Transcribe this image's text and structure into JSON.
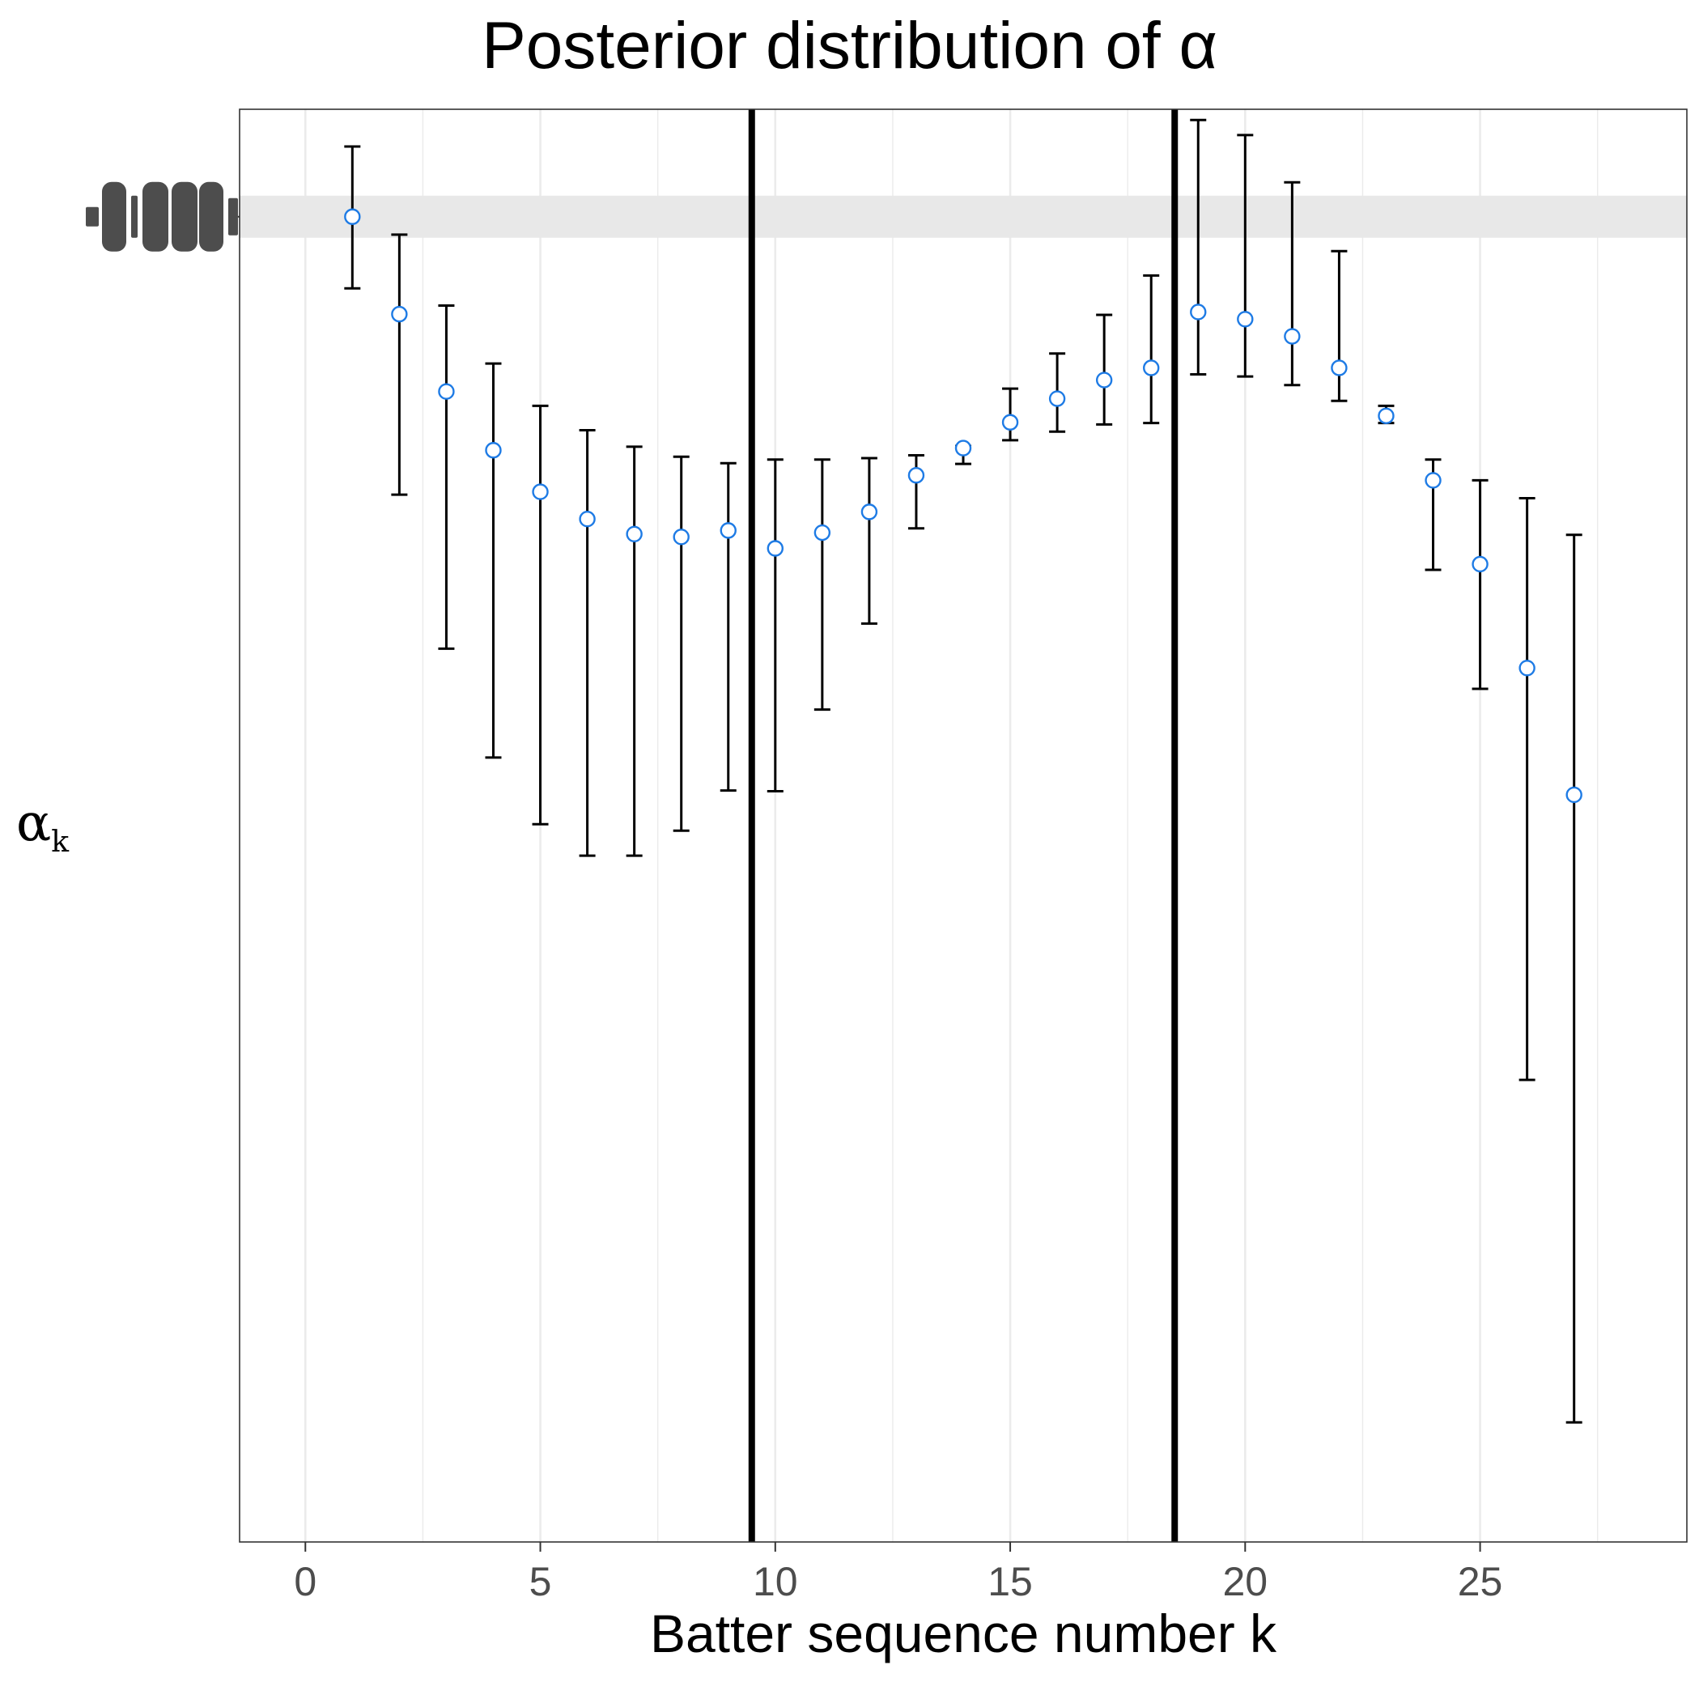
{
  "chart_data": {
    "type": "scatter",
    "title": "Posterior distribution of α",
    "xlabel": "Batter sequence number k",
    "ylabel": "α",
    "ylabel_subscript": "k",
    "xlim": [
      -1.4,
      29.4
    ],
    "x_ticks": [
      0,
      5,
      10,
      15,
      20,
      25
    ],
    "x_tick_labels": [
      "0",
      "5",
      "10",
      "15",
      "20",
      "25"
    ],
    "ylim": [
      -1.05,
      0.95
    ],
    "y_tick_value": 0.8,
    "vertical_lines_x": [
      9.5,
      18.5
    ],
    "grid": "vertical only",
    "series": [
      {
        "x": [
          1,
          2,
          3,
          4,
          5,
          6,
          7,
          8,
          9,
          10,
          11,
          12,
          13,
          14,
          15,
          16,
          17,
          18,
          19,
          20,
          21,
          22,
          23,
          24,
          25,
          26,
          27
        ],
        "y": [
          0.8,
          0.664,
          0.556,
          0.474,
          0.416,
          0.378,
          0.357,
          0.353,
          0.362,
          0.337,
          0.359,
          0.388,
          0.439,
          0.477,
          0.513,
          0.546,
          0.572,
          0.589,
          0.667,
          0.657,
          0.633,
          0.589,
          0.522,
          0.432,
          0.315,
          0.17,
          -0.007
        ],
        "lower": [
          0.7,
          0.412,
          0.197,
          0.045,
          -0.048,
          -0.092,
          -0.092,
          -0.057,
          -0.001,
          -0.002,
          0.112,
          0.232,
          0.365,
          0.455,
          0.488,
          0.5,
          0.51,
          0.512,
          0.58,
          0.577,
          0.565,
          0.543,
          0.512,
          0.307,
          0.141,
          -0.405,
          -0.883
        ],
        "upper": [
          0.898,
          0.775,
          0.676,
          0.595,
          0.536,
          0.502,
          0.479,
          0.465,
          0.456,
          0.461,
          0.461,
          0.463,
          0.467,
          0.48,
          0.56,
          0.609,
          0.663,
          0.718,
          0.935,
          0.914,
          0.848,
          0.752,
          0.536,
          0.461,
          0.432,
          0.407,
          0.356
        ]
      }
    ],
    "colors": {
      "point_stroke": "#1e7be5",
      "point_fill": "#ffffff",
      "errorbar": "#000000",
      "vline": "#000000",
      "grid": "#ebebeb",
      "highlight_band": "#e8e8e8",
      "tick_text": "#4d4d4d"
    }
  }
}
